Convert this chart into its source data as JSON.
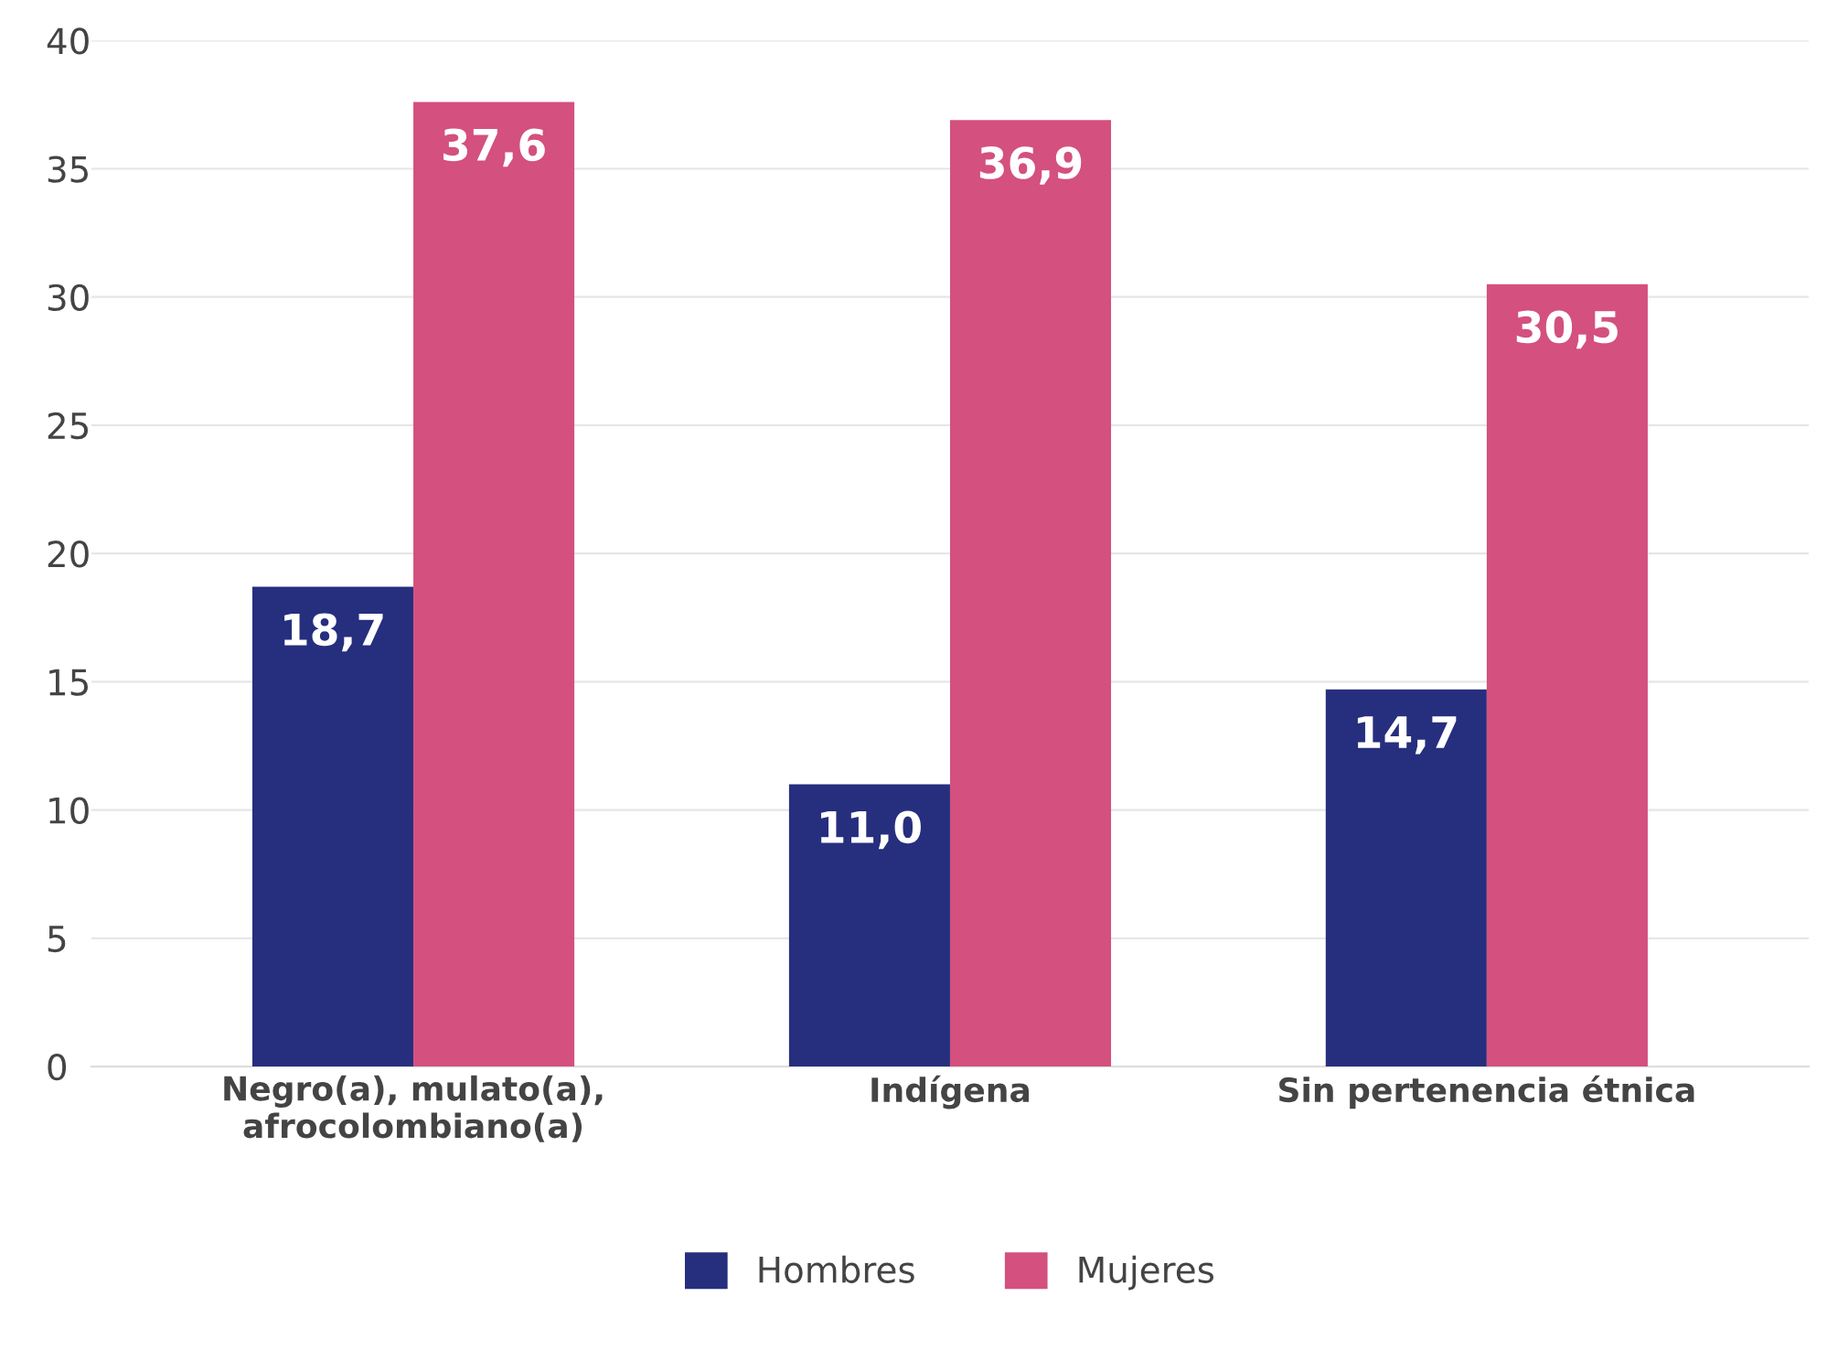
{
  "chart_data": {
    "type": "bar",
    "categories": [
      "Negro(a), mulato(a),\nafrocolombiano(a)",
      "Indígena",
      "Sin pertenencia étnica"
    ],
    "series": [
      {
        "name": "Hombres",
        "color": "#262e7e",
        "values": [
          18.7,
          11.0,
          14.7
        ],
        "value_labels": [
          "18,7",
          "11,0",
          "14,7"
        ]
      },
      {
        "name": "Mujeres",
        "color": "#d4507e",
        "values": [
          37.6,
          36.9,
          30.5
        ],
        "value_labels": [
          "37,6",
          "36,9",
          "30,5"
        ]
      }
    ],
    "ylim": [
      0,
      40
    ],
    "yticks": [
      0,
      5,
      10,
      15,
      20,
      25,
      30,
      35,
      40
    ],
    "grid": "y",
    "legend": "bottom"
  }
}
